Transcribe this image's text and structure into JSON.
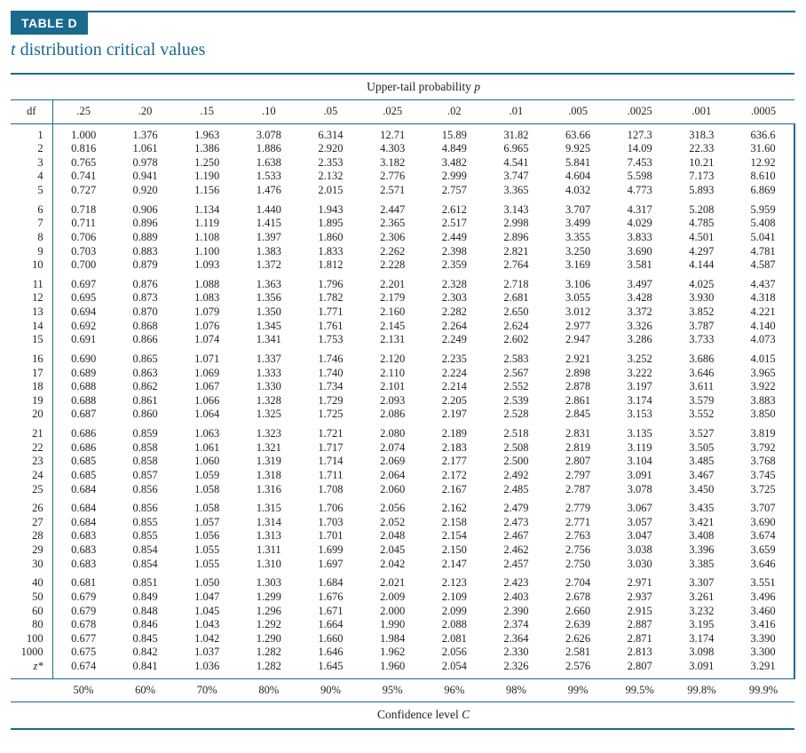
{
  "colors": {
    "accent": "#1a6a8e",
    "background": "#ffffff",
    "text": "#222222"
  },
  "typography": {
    "body_family": "Times New Roman",
    "tab_family": "Arial",
    "subtitle_fontsize_pt": 15,
    "cell_fontsize_pt": 9.5,
    "caption_fontsize_pt": 10
  },
  "header": {
    "tab_label": "TABLE D",
    "subtitle_prefix_italic": "t",
    "subtitle_rest": " distribution critical values"
  },
  "captions": {
    "upper_prefix": "Upper-tail probability ",
    "upper_var": "p",
    "lower_prefix": "Confidence level ",
    "lower_var": "C"
  },
  "columns": {
    "df_label": "df",
    "p_values": [
      ".25",
      ".20",
      ".15",
      ".10",
      ".05",
      ".025",
      ".02",
      ".01",
      ".005",
      ".0025",
      ".001",
      ".0005"
    ],
    "conf_values": [
      "50%",
      "60%",
      "70%",
      "80%",
      "90%",
      "95%",
      "96%",
      "98%",
      "99%",
      "99.5%",
      "99.8%",
      "99.9%"
    ]
  },
  "groups": [
    [
      {
        "df": "1",
        "v": [
          "1.000",
          "1.376",
          "1.963",
          "3.078",
          "6.314",
          "12.71",
          "15.89",
          "31.82",
          "63.66",
          "127.3",
          "318.3",
          "636.6"
        ]
      },
      {
        "df": "2",
        "v": [
          "0.816",
          "1.061",
          "1.386",
          "1.886",
          "2.920",
          "4.303",
          "4.849",
          "6.965",
          "9.925",
          "14.09",
          "22.33",
          "31.60"
        ]
      },
      {
        "df": "3",
        "v": [
          "0.765",
          "0.978",
          "1.250",
          "1.638",
          "2.353",
          "3.182",
          "3.482",
          "4.541",
          "5.841",
          "7.453",
          "10.21",
          "12.92"
        ]
      },
      {
        "df": "4",
        "v": [
          "0.741",
          "0.941",
          "1.190",
          "1.533",
          "2.132",
          "2.776",
          "2.999",
          "3.747",
          "4.604",
          "5.598",
          "7.173",
          "8.610"
        ]
      },
      {
        "df": "5",
        "v": [
          "0.727",
          "0.920",
          "1.156",
          "1.476",
          "2.015",
          "2.571",
          "2.757",
          "3.365",
          "4.032",
          "4.773",
          "5.893",
          "6.869"
        ]
      }
    ],
    [
      {
        "df": "6",
        "v": [
          "0.718",
          "0.906",
          "1.134",
          "1.440",
          "1.943",
          "2.447",
          "2.612",
          "3.143",
          "3.707",
          "4.317",
          "5.208",
          "5.959"
        ]
      },
      {
        "df": "7",
        "v": [
          "0.711",
          "0.896",
          "1.119",
          "1.415",
          "1.895",
          "2.365",
          "2.517",
          "2.998",
          "3.499",
          "4.029",
          "4.785",
          "5.408"
        ]
      },
      {
        "df": "8",
        "v": [
          "0.706",
          "0.889",
          "1.108",
          "1.397",
          "1.860",
          "2.306",
          "2.449",
          "2.896",
          "3.355",
          "3.833",
          "4.501",
          "5.041"
        ]
      },
      {
        "df": "9",
        "v": [
          "0.703",
          "0.883",
          "1.100",
          "1.383",
          "1.833",
          "2.262",
          "2.398",
          "2.821",
          "3.250",
          "3.690",
          "4.297",
          "4.781"
        ]
      },
      {
        "df": "10",
        "v": [
          "0.700",
          "0.879",
          "1.093",
          "1.372",
          "1.812",
          "2.228",
          "2.359",
          "2.764",
          "3.169",
          "3.581",
          "4.144",
          "4.587"
        ]
      }
    ],
    [
      {
        "df": "11",
        "v": [
          "0.697",
          "0.876",
          "1.088",
          "1.363",
          "1.796",
          "2.201",
          "2.328",
          "2.718",
          "3.106",
          "3.497",
          "4.025",
          "4.437"
        ]
      },
      {
        "df": "12",
        "v": [
          "0.695",
          "0.873",
          "1.083",
          "1.356",
          "1.782",
          "2.179",
          "2.303",
          "2.681",
          "3.055",
          "3.428",
          "3.930",
          "4.318"
        ]
      },
      {
        "df": "13",
        "v": [
          "0.694",
          "0.870",
          "1.079",
          "1.350",
          "1.771",
          "2.160",
          "2.282",
          "2.650",
          "3.012",
          "3.372",
          "3.852",
          "4.221"
        ]
      },
      {
        "df": "14",
        "v": [
          "0.692",
          "0.868",
          "1.076",
          "1.345",
          "1.761",
          "2.145",
          "2.264",
          "2.624",
          "2.977",
          "3.326",
          "3.787",
          "4.140"
        ]
      },
      {
        "df": "15",
        "v": [
          "0.691",
          "0.866",
          "1.074",
          "1.341",
          "1.753",
          "2.131",
          "2.249",
          "2.602",
          "2.947",
          "3.286",
          "3.733",
          "4.073"
        ]
      }
    ],
    [
      {
        "df": "16",
        "v": [
          "0.690",
          "0.865",
          "1.071",
          "1.337",
          "1.746",
          "2.120",
          "2.235",
          "2.583",
          "2.921",
          "3.252",
          "3.686",
          "4.015"
        ]
      },
      {
        "df": "17",
        "v": [
          "0.689",
          "0.863",
          "1.069",
          "1.333",
          "1.740",
          "2.110",
          "2.224",
          "2.567",
          "2.898",
          "3.222",
          "3.646",
          "3.965"
        ]
      },
      {
        "df": "18",
        "v": [
          "0.688",
          "0.862",
          "1.067",
          "1.330",
          "1.734",
          "2.101",
          "2.214",
          "2.552",
          "2.878",
          "3.197",
          "3.611",
          "3.922"
        ]
      },
      {
        "df": "19",
        "v": [
          "0.688",
          "0.861",
          "1.066",
          "1.328",
          "1.729",
          "2.093",
          "2.205",
          "2.539",
          "2.861",
          "3.174",
          "3.579",
          "3.883"
        ]
      },
      {
        "df": "20",
        "v": [
          "0.687",
          "0.860",
          "1.064",
          "1.325",
          "1.725",
          "2.086",
          "2.197",
          "2.528",
          "2.845",
          "3.153",
          "3.552",
          "3.850"
        ]
      }
    ],
    [
      {
        "df": "21",
        "v": [
          "0.686",
          "0.859",
          "1.063",
          "1.323",
          "1.721",
          "2.080",
          "2.189",
          "2.518",
          "2.831",
          "3.135",
          "3.527",
          "3.819"
        ]
      },
      {
        "df": "22",
        "v": [
          "0.686",
          "0.858",
          "1.061",
          "1.321",
          "1.717",
          "2.074",
          "2.183",
          "2.508",
          "2.819",
          "3.119",
          "3.505",
          "3.792"
        ]
      },
      {
        "df": "23",
        "v": [
          "0.685",
          "0.858",
          "1.060",
          "1.319",
          "1.714",
          "2.069",
          "2.177",
          "2.500",
          "2.807",
          "3.104",
          "3.485",
          "3.768"
        ]
      },
      {
        "df": "24",
        "v": [
          "0.685",
          "0.857",
          "1.059",
          "1.318",
          "1.711",
          "2.064",
          "2.172",
          "2.492",
          "2.797",
          "3.091",
          "3.467",
          "3.745"
        ]
      },
      {
        "df": "25",
        "v": [
          "0.684",
          "0.856",
          "1.058",
          "1.316",
          "1.708",
          "2.060",
          "2.167",
          "2.485",
          "2.787",
          "3.078",
          "3.450",
          "3.725"
        ]
      }
    ],
    [
      {
        "df": "26",
        "v": [
          "0.684",
          "0.856",
          "1.058",
          "1.315",
          "1.706",
          "2.056",
          "2.162",
          "2.479",
          "2.779",
          "3.067",
          "3.435",
          "3.707"
        ]
      },
      {
        "df": "27",
        "v": [
          "0.684",
          "0.855",
          "1.057",
          "1.314",
          "1.703",
          "2.052",
          "2.158",
          "2.473",
          "2.771",
          "3.057",
          "3.421",
          "3.690"
        ]
      },
      {
        "df": "28",
        "v": [
          "0.683",
          "0.855",
          "1.056",
          "1.313",
          "1.701",
          "2.048",
          "2.154",
          "2.467",
          "2.763",
          "3.047",
          "3.408",
          "3.674"
        ]
      },
      {
        "df": "29",
        "v": [
          "0.683",
          "0.854",
          "1.055",
          "1.311",
          "1.699",
          "2.045",
          "2.150",
          "2.462",
          "2.756",
          "3.038",
          "3.396",
          "3.659"
        ]
      },
      {
        "df": "30",
        "v": [
          "0.683",
          "0.854",
          "1.055",
          "1.310",
          "1.697",
          "2.042",
          "2.147",
          "2.457",
          "2.750",
          "3.030",
          "3.385",
          "3.646"
        ]
      }
    ],
    [
      {
        "df": "40",
        "v": [
          "0.681",
          "0.851",
          "1.050",
          "1.303",
          "1.684",
          "2.021",
          "2.123",
          "2.423",
          "2.704",
          "2.971",
          "3.307",
          "3.551"
        ]
      },
      {
        "df": "50",
        "v": [
          "0.679",
          "0.849",
          "1.047",
          "1.299",
          "1.676",
          "2.009",
          "2.109",
          "2.403",
          "2.678",
          "2.937",
          "3.261",
          "3.496"
        ]
      },
      {
        "df": "60",
        "v": [
          "0.679",
          "0.848",
          "1.045",
          "1.296",
          "1.671",
          "2.000",
          "2.099",
          "2.390",
          "2.660",
          "2.915",
          "3.232",
          "3.460"
        ]
      },
      {
        "df": "80",
        "v": [
          "0.678",
          "0.846",
          "1.043",
          "1.292",
          "1.664",
          "1.990",
          "2.088",
          "2.374",
          "2.639",
          "2.887",
          "3.195",
          "3.416"
        ]
      },
      {
        "df": "100",
        "v": [
          "0.677",
          "0.845",
          "1.042",
          "1.290",
          "1.660",
          "1.984",
          "2.081",
          "2.364",
          "2.626",
          "2.871",
          "3.174",
          "3.390"
        ]
      },
      {
        "df": "1000",
        "v": [
          "0.675",
          "0.842",
          "1.037",
          "1.282",
          "1.646",
          "1.962",
          "2.056",
          "2.330",
          "2.581",
          "2.813",
          "3.098",
          "3.300"
        ]
      },
      {
        "df": "z*",
        "italic": true,
        "v": [
          "0.674",
          "0.841",
          "1.036",
          "1.282",
          "1.645",
          "1.960",
          "2.054",
          "2.326",
          "2.576",
          "2.807",
          "3.091",
          "3.291"
        ]
      }
    ]
  ]
}
